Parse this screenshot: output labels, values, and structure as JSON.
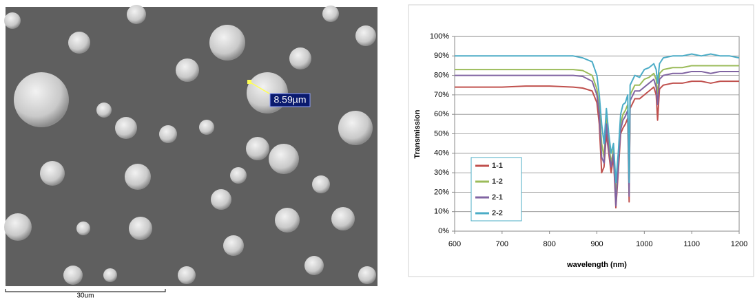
{
  "sem_image": {
    "measurement_label": "8.59µm",
    "scale_bar_label": "30um"
  },
  "chart_data": {
    "type": "line",
    "x_label": "wavelength (nm)",
    "y_label": "Transmission",
    "x": [
      600,
      650,
      700,
      750,
      800,
      850,
      870,
      890,
      900,
      905,
      910,
      915,
      920,
      925,
      930,
      935,
      940,
      945,
      950,
      955,
      960,
      965,
      968,
      970,
      980,
      990,
      1000,
      1010,
      1020,
      1025,
      1028,
      1032,
      1040,
      1060,
      1080,
      1100,
      1120,
      1140,
      1160,
      1180,
      1200
    ],
    "series": [
      {
        "name": "1-1",
        "color": "#c0504d",
        "values": [
          74,
          74,
          74,
          74.5,
          74.5,
          74,
          73.5,
          72,
          66,
          55,
          30,
          33,
          50,
          40,
          30,
          38,
          12,
          30,
          50,
          53,
          55,
          58,
          15,
          63,
          68,
          68,
          70,
          72,
          74,
          70,
          57,
          73,
          75,
          76,
          76,
          77,
          77,
          76,
          77,
          77,
          77
        ]
      },
      {
        "name": "1-2",
        "color": "#9bbb59",
        "values": [
          83,
          83,
          83,
          83,
          83,
          83,
          82.5,
          80,
          73,
          63,
          45,
          38,
          58,
          45,
          35,
          42,
          18,
          35,
          55,
          60,
          62,
          65,
          20,
          70,
          75,
          75,
          78,
          79,
          81,
          78,
          70,
          81,
          83,
          84,
          84,
          85,
          85,
          85,
          85,
          85,
          85
        ]
      },
      {
        "name": "2-1",
        "color": "#8064a2",
        "values": [
          80,
          80,
          80,
          80,
          80,
          80,
          79.5,
          77,
          70,
          60,
          38,
          35,
          55,
          42,
          33,
          40,
          13,
          33,
          52,
          57,
          59,
          62,
          18,
          67,
          72,
          72,
          74,
          76,
          78,
          74,
          65,
          78,
          80,
          81,
          81,
          82,
          82,
          81,
          82,
          82,
          82
        ]
      },
      {
        "name": "2-2",
        "color": "#4bacc6",
        "values": [
          90,
          90,
          90,
          90,
          90,
          90,
          89,
          87,
          80,
          70,
          55,
          45,
          63,
          50,
          40,
          45,
          25,
          40,
          60,
          65,
          66,
          70,
          25,
          75,
          80,
          79,
          83,
          84,
          86,
          83,
          76,
          86,
          89,
          90,
          90,
          91,
          90,
          91,
          90,
          90,
          89
        ]
      }
    ],
    "xlim": [
      600,
      1200
    ],
    "xticks": [
      600,
      700,
      800,
      900,
      1000,
      1100,
      1200
    ],
    "ylim": [
      0,
      100
    ],
    "yticks": [
      {
        "value": 0,
        "label": "0%"
      },
      {
        "value": 10,
        "label": "10%"
      },
      {
        "value": 20,
        "label": "20%"
      },
      {
        "value": 30,
        "label": "30%"
      },
      {
        "value": 40,
        "label": "40%"
      },
      {
        "value": 50,
        "label": "50%"
      },
      {
        "value": 60,
        "label": "60%"
      },
      {
        "value": 70,
        "label": "70%"
      },
      {
        "value": 80,
        "label": "80%"
      },
      {
        "value": 90,
        "label": "90%"
      },
      {
        "value": 100,
        "label": "100%"
      }
    ],
    "grid": true,
    "legend": "lower-left"
  }
}
